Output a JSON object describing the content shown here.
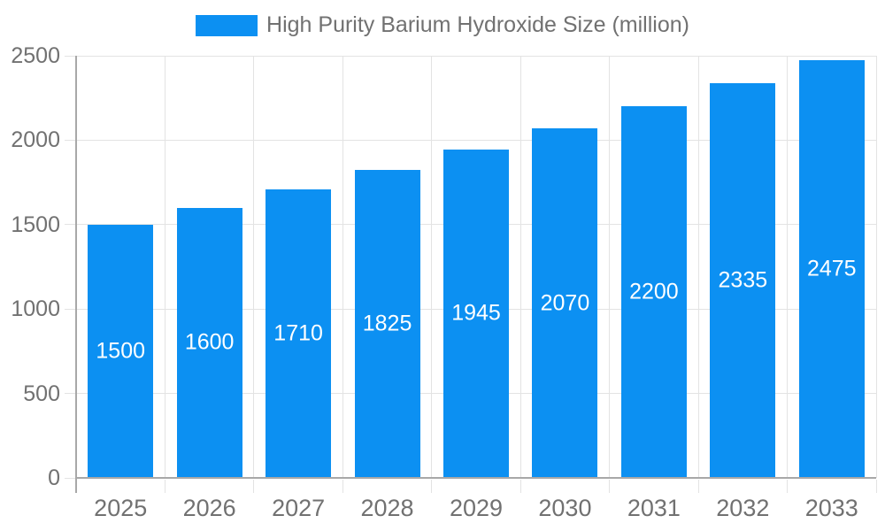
{
  "chart_data": {
    "type": "bar",
    "title": "High Purity Barium Hydroxide Size (million)",
    "legend_entries": [
      "High Purity Barium Hydroxide Size (million)"
    ],
    "legend_position": "top-center",
    "categories": [
      "2025",
      "2026",
      "2027",
      "2028",
      "2029",
      "2030",
      "2031",
      "2032",
      "2033"
    ],
    "values": [
      1500,
      1600,
      1710,
      1825,
      1945,
      2070,
      2200,
      2335,
      2475
    ],
    "xlabel": "",
    "ylabel": "",
    "ylim": [
      0,
      2500
    ],
    "yticks": [
      0,
      500,
      1000,
      1500,
      2000,
      2500
    ],
    "grid": true,
    "value_labels": "inside-center",
    "colors": {
      "bar": "#0c90f2",
      "bar_label": "#ffffff",
      "text": "#717171",
      "grid": "#e3e3e3",
      "axis": "#a8a8a8",
      "background": "#ffffff"
    }
  }
}
